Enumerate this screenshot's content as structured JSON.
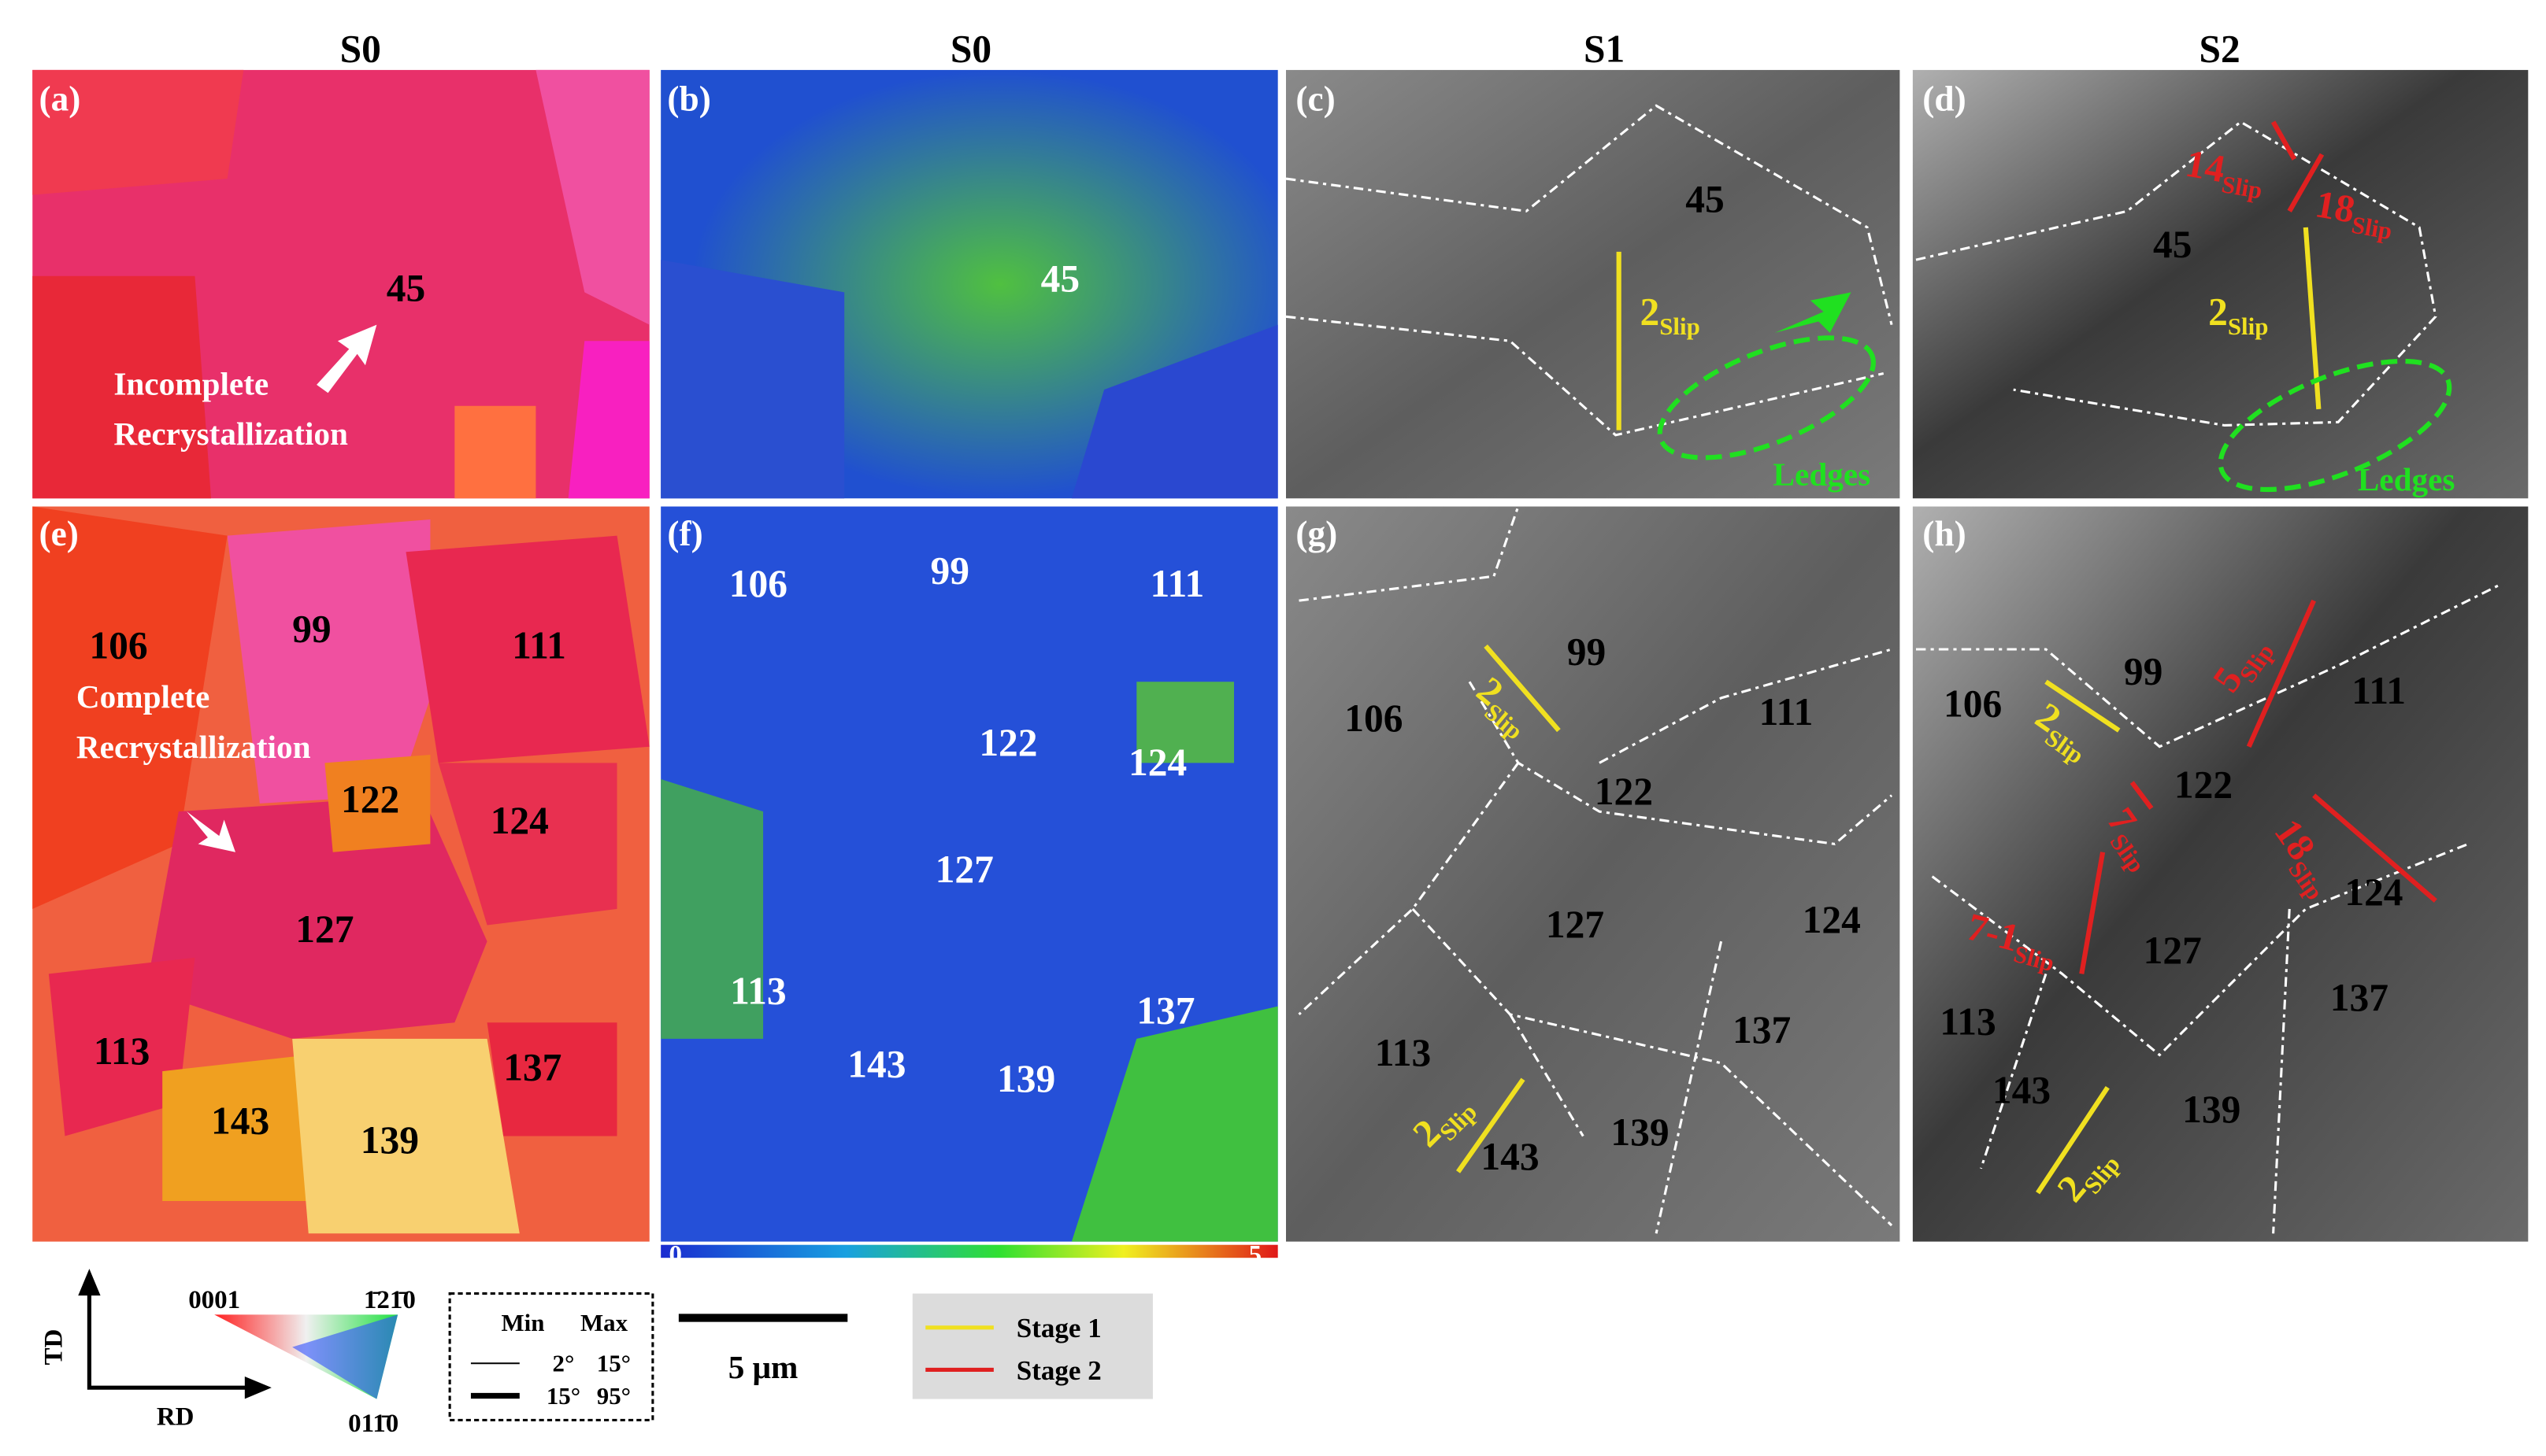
{
  "columns": [
    "S0",
    "S0",
    "S1",
    "S2"
  ],
  "panels": [
    {
      "label": "(a)",
      "grains": [
        "45"
      ],
      "annotation": [
        "Incomplete",
        "Recrystallization"
      ]
    },
    {
      "label": "(b)",
      "grains": [
        "45"
      ]
    },
    {
      "label": "(c)",
      "grains": [
        "45"
      ],
      "slips": [
        {
          "number": "2",
          "sub": "Slip"
        }
      ],
      "note": "Ledges"
    },
    {
      "label": "(d)",
      "grains": [
        "45"
      ],
      "slips": [
        {
          "number": "14",
          "sub": "Slip"
        },
        {
          "number": "18",
          "sub": "Slip"
        },
        {
          "number": "2",
          "sub": "Slip"
        }
      ],
      "note": "Ledges"
    },
    {
      "label": "(e)",
      "grains": [
        "106",
        "99",
        "111",
        "122",
        "124",
        "127",
        "113",
        "137",
        "143",
        "139"
      ],
      "annotation": [
        "Complete",
        "Recrystallization"
      ]
    },
    {
      "label": "(f)",
      "grains": [
        "106",
        "99",
        "111",
        "122",
        "124",
        "127",
        "113",
        "137",
        "143",
        "139"
      ]
    },
    {
      "label": "(g)",
      "grains": [
        "99",
        "106",
        "111",
        "122",
        "127",
        "124",
        "113",
        "137",
        "139",
        "143"
      ],
      "slips": [
        {
          "number": "2",
          "sub": "Slip"
        },
        {
          "number": "2",
          "sub": "Slip"
        }
      ]
    },
    {
      "label": "(h)",
      "grains": [
        "106",
        "99",
        "111",
        "122",
        "124",
        "127",
        "113",
        "137",
        "143",
        "139"
      ],
      "slips": [
        {
          "number": "2",
          "sub": "Slip"
        },
        {
          "number": "5",
          "sub": "Slip"
        },
        {
          "number": "7",
          "sub": "Slip"
        },
        {
          "number": "18",
          "sub": "Slip"
        },
        {
          "number": "7-1",
          "sub": "Slip"
        },
        {
          "number": "2",
          "sub": "Slip"
        }
      ]
    }
  ],
  "colorbar": {
    "min": "0",
    "max": "5"
  },
  "ipf": {
    "axes": [
      "TD",
      "RD"
    ],
    "corners": [
      "0001",
      "1̄21̄0",
      "011̄0"
    ]
  },
  "boundaries": {
    "header": [
      "Min",
      "Max"
    ],
    "rows": [
      [
        "2°",
        "15°"
      ],
      [
        "15°",
        "95°"
      ]
    ]
  },
  "scale_bar": "5 μm",
  "stages": [
    "Stage 1",
    "Stage 2"
  ]
}
